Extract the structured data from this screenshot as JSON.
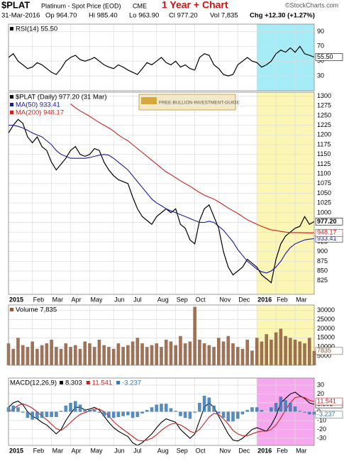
{
  "header": {
    "symbol": "$PLAT",
    "name": "Platinum - Spot Price (EOD)",
    "exchange": "CME",
    "headline": "1 Year + Chart",
    "credit": "©StockCharts.com",
    "date": "31-Mar-2016",
    "open": "Op 964.70",
    "high": "Hi 985.40",
    "low": "Lo 963.90",
    "close": "Cl 977.20",
    "volume": "Vol 7,835",
    "change": "Chg +12.30 (+1.27%)",
    "watermark": "FREE-BULLION-INVESTMENT-GUIDE"
  },
  "chart_data": [
    {
      "type": "line",
      "xlim": [
        0,
        64
      ],
      "ylim": [
        10,
        100
      ],
      "yticks": [
        30,
        50,
        70,
        90
      ],
      "grid": true,
      "show_x_labels": false,
      "legend_direction": "row",
      "highlight_from": 52,
      "highlight_color": "#a6ecf6",
      "xticks": [
        {
          "value": 0,
          "label": "2015"
        },
        {
          "value": 5,
          "label": "Feb"
        },
        {
          "value": 9,
          "label": "Mar"
        },
        {
          "value": 13,
          "label": "Apr"
        },
        {
          "value": 17,
          "label": "May"
        },
        {
          "value": 22,
          "label": "Jun"
        },
        {
          "value": 26,
          "label": "Jul"
        },
        {
          "value": 31,
          "label": "Aug"
        },
        {
          "value": 35,
          "label": "Sep"
        },
        {
          "value": 39,
          "label": "Oct"
        },
        {
          "value": 44,
          "label": "Nov"
        },
        {
          "value": 48,
          "label": "Dec"
        },
        {
          "value": 52,
          "label": "2016"
        },
        {
          "value": 56,
          "label": "Feb"
        },
        {
          "value": 60,
          "label": "Mar"
        }
      ],
      "series": [
        {
          "name": "RSI(14) 55.50",
          "tag": "55.50",
          "color": "#000000",
          "values": [
            55,
            60,
            50,
            45,
            40,
            42,
            48,
            45,
            40,
            35,
            32,
            40,
            50,
            55,
            58,
            52,
            50,
            52,
            55,
            50,
            45,
            42,
            40,
            45,
            42,
            38,
            35,
            32,
            40,
            48,
            45,
            50,
            55,
            48,
            45,
            50,
            42,
            45,
            40,
            38,
            55,
            60,
            58,
            45,
            40,
            32,
            30,
            32,
            45,
            50,
            55,
            50,
            48,
            42,
            45,
            50,
            60,
            65,
            62,
            68,
            62,
            70,
            60,
            58,
            55.5
          ]
        }
      ]
    },
    {
      "type": "line",
      "xlim": [
        0,
        64
      ],
      "ylim": [
        790,
        1310
      ],
      "yticks": [
        825,
        850,
        875,
        900,
        925,
        950,
        975,
        1000,
        1025,
        1050,
        1075,
        1100,
        1125,
        1150,
        1175,
        1200,
        1225,
        1250,
        1275,
        1300
      ],
      "grid": true,
      "show_x_labels": true,
      "legend_direction": "column",
      "highlight_from": 52,
      "highlight_color": "#fbf6b4",
      "xticks": [
        {
          "value": 0,
          "label": "2015"
        },
        {
          "value": 5,
          "label": "Feb"
        },
        {
          "value": 9,
          "label": "Mar"
        },
        {
          "value": 13,
          "label": "Apr"
        },
        {
          "value": 17,
          "label": "May"
        },
        {
          "value": 22,
          "label": "Jun"
        },
        {
          "value": 26,
          "label": "Jul"
        },
        {
          "value": 31,
          "label": "Aug"
        },
        {
          "value": 35,
          "label": "Sep"
        },
        {
          "value": 39,
          "label": "Oct"
        },
        {
          "value": 44,
          "label": "Nov"
        },
        {
          "value": 48,
          "label": "Dec"
        },
        {
          "value": 52,
          "label": "2016"
        },
        {
          "value": 56,
          "label": "Feb"
        },
        {
          "value": 60,
          "label": "Mar"
        }
      ],
      "series": [
        {
          "name": "$PLAT (Daily) 977.20 (31 Mar)",
          "tag": "977.20",
          "color": "#000000",
          "values": [
            1205,
            1225,
            1240,
            1230,
            1195,
            1180,
            1195,
            1170,
            1160,
            1130,
            1110,
            1125,
            1140,
            1160,
            1170,
            1150,
            1145,
            1150,
            1165,
            1160,
            1130,
            1110,
            1095,
            1085,
            1080,
            1075,
            1040,
            1010,
            990,
            980,
            970,
            990,
            1000,
            1010,
            1000,
            1010,
            970,
            960,
            930,
            920,
            980,
            1010,
            1020,
            990,
            960,
            900,
            860,
            840,
            850,
            860,
            880,
            870,
            860,
            840,
            830,
            820,
            880,
            920,
            940,
            950,
            960,
            965,
            990,
            970,
            977.2
          ]
        },
        {
          "name": "MA(50) 933.41",
          "tag": "933.41",
          "color": "#1c1c9a",
          "values": [
            1225,
            1225,
            1222,
            1218,
            1212,
            1205,
            1200,
            1195,
            1185,
            1175,
            1160,
            1150,
            1145,
            1140,
            1140,
            1140,
            1140,
            1142,
            1145,
            1148,
            1150,
            1148,
            1140,
            1130,
            1120,
            1110,
            1095,
            1080,
            1065,
            1050,
            1035,
            1025,
            1018,
            1010,
            1005,
            1000,
            995,
            990,
            985,
            980,
            975,
            975,
            978,
            975,
            965,
            955,
            940,
            925,
            905,
            890,
            875,
            865,
            855,
            848,
            845,
            850,
            860,
            875,
            895,
            910,
            920,
            925,
            930,
            932,
            933.41
          ]
        },
        {
          "name": "MA(200) 948.17",
          "tag": "948.17",
          "color": "#cc2222",
          "values": [
            null,
            null,
            null,
            null,
            null,
            null,
            null,
            null,
            null,
            null,
            null,
            null,
            null,
            1280,
            1270,
            1262,
            1255,
            1248,
            1240,
            1232,
            1225,
            1218,
            1210,
            1200,
            1192,
            1185,
            1175,
            1165,
            1155,
            1145,
            1135,
            1125,
            1115,
            1105,
            1098,
            1090,
            1082,
            1075,
            1068,
            1060,
            1052,
            1045,
            1040,
            1035,
            1028,
            1020,
            1012,
            1005,
            998,
            990,
            982,
            976,
            970,
            965,
            960,
            956,
            954,
            952,
            950,
            949,
            949,
            948.5,
            948.3,
            948.2,
            948.17
          ]
        }
      ]
    },
    {
      "type": "bar",
      "xlim": [
        0,
        64
      ],
      "ylim": [
        0,
        33000
      ],
      "yticks": [
        5000,
        10000,
        15000,
        20000,
        25000,
        30000
      ],
      "grid": true,
      "show_x_labels": false,
      "legend_direction": "row",
      "highlight_from": 52,
      "highlight_color": "#fbf6b4",
      "xticks": [
        {
          "value": 0,
          "label": "2015"
        },
        {
          "value": 5,
          "label": "Feb"
        },
        {
          "value": 9,
          "label": "Mar"
        },
        {
          "value": 13,
          "label": "Apr"
        },
        {
          "value": 17,
          "label": "May"
        },
        {
          "value": 22,
          "label": "Jun"
        },
        {
          "value": 26,
          "label": "Jul"
        },
        {
          "value": 31,
          "label": "Aug"
        },
        {
          "value": 35,
          "label": "Sep"
        },
        {
          "value": 39,
          "label": "Oct"
        },
        {
          "value": 44,
          "label": "Nov"
        },
        {
          "value": 48,
          "label": "Dec"
        },
        {
          "value": 52,
          "label": "2016"
        },
        {
          "value": 56,
          "label": "Feb"
        },
        {
          "value": 60,
          "label": "Mar"
        }
      ],
      "series": [
        {
          "name": "Volume 7,835",
          "tag": "7835",
          "color": "#8c5a3c",
          "values": [
            12000,
            9000,
            15000,
            11000,
            10000,
            13000,
            9000,
            11000,
            12000,
            14000,
            10000,
            9000,
            12000,
            10000,
            11000,
            9000,
            13000,
            12000,
            10000,
            14000,
            11000,
            10000,
            9000,
            12000,
            10000,
            11000,
            13000,
            15000,
            12000,
            10000,
            11000,
            12000,
            10000,
            14000,
            13000,
            11000,
            16000,
            12000,
            13000,
            32000,
            14000,
            12000,
            11000,
            10000,
            15000,
            13000,
            16000,
            12000,
            10000,
            9000,
            14000,
            8000,
            15000,
            13000,
            17000,
            14000,
            18000,
            20000,
            16000,
            15000,
            14000,
            13000,
            12000,
            15000,
            7835
          ]
        }
      ]
    },
    {
      "type": "line",
      "title": "MACD(12,26,9)",
      "xlim": [
        0,
        64
      ],
      "ylim": [
        -38,
        38
      ],
      "yticks": [
        -30,
        -20,
        -10,
        0,
        10,
        20,
        30
      ],
      "grid": true,
      "show_x_labels": true,
      "legend_direction": "row",
      "highlight_from": 52,
      "highlight_color": "#f5a8ee",
      "xticks": [
        {
          "value": 0,
          "label": "2015"
        },
        {
          "value": 5,
          "label": "Feb"
        },
        {
          "value": 9,
          "label": "Mar"
        },
        {
          "value": 13,
          "label": "Apr"
        },
        {
          "value": 17,
          "label": "May"
        },
        {
          "value": 22,
          "label": "Jun"
        },
        {
          "value": 26,
          "label": "Jul"
        },
        {
          "value": 31,
          "label": "Aug"
        },
        {
          "value": 35,
          "label": "Sep"
        },
        {
          "value": 39,
          "label": "Oct"
        },
        {
          "value": 44,
          "label": "Nov"
        },
        {
          "value": 48,
          "label": "Dec"
        },
        {
          "value": 52,
          "label": "2016"
        },
        {
          "value": 56,
          "label": "Feb"
        },
        {
          "value": 60,
          "label": "Mar"
        }
      ],
      "series": [
        {
          "name": "8.303",
          "color": "#000000",
          "values": [
            5,
            10,
            12,
            8,
            0,
            -5,
            -8,
            -12,
            -15,
            -20,
            -25,
            -20,
            -10,
            -2,
            5,
            5,
            2,
            3,
            5,
            2,
            -5,
            -12,
            -18,
            -22,
            -25,
            -28,
            -35,
            -38,
            -35,
            -30,
            -25,
            -18,
            -12,
            -8,
            -10,
            -12,
            -20,
            -25,
            -30,
            -25,
            -10,
            5,
            10,
            5,
            -5,
            -15,
            -25,
            -32,
            -33,
            -30,
            -25,
            -20,
            -18,
            -20,
            -22,
            -15,
            -5,
            10,
            15,
            20,
            22,
            18,
            15,
            10,
            8.303
          ]
        },
        {
          "name": "11.541",
          "color": "#cc2222",
          "values": [
            0,
            3,
            7,
            9,
            7,
            4,
            0,
            -5,
            -9,
            -14,
            -19,
            -21,
            -17,
            -12,
            -7,
            -3,
            -1,
            1,
            3,
            3,
            0,
            -5,
            -11,
            -16,
            -20,
            -24,
            -28,
            -32,
            -33,
            -32,
            -30,
            -26,
            -21,
            -17,
            -14,
            -13,
            -15,
            -18,
            -22,
            -24,
            -20,
            -13,
            -6,
            -2,
            -3,
            -8,
            -14,
            -21,
            -25,
            -27,
            -27,
            -25,
            -23,
            -22,
            -22,
            -20,
            -15,
            -7,
            2,
            10,
            16,
            17,
            16,
            13,
            11.541
          ]
        },
        {
          "name": "-3.237",
          "color": "#3a78b0",
          "type": "bar",
          "values": [
            5,
            7,
            5,
            -1,
            -7,
            -9,
            -8,
            -7,
            -6,
            -6,
            -6,
            1,
            7,
            10,
            12,
            8,
            3,
            2,
            2,
            -1,
            -5,
            -7,
            -7,
            -6,
            -5,
            -4,
            -7,
            -6,
            -2,
            2,
            5,
            8,
            9,
            9,
            4,
            1,
            -5,
            -7,
            -8,
            -1,
            10,
            18,
            16,
            7,
            -2,
            -7,
            -11,
            -11,
            -8,
            -3,
            2,
            5,
            5,
            2,
            0,
            5,
            10,
            17,
            13,
            10,
            6,
            1,
            -1,
            -3,
            -3.237
          ]
        }
      ]
    }
  ]
}
